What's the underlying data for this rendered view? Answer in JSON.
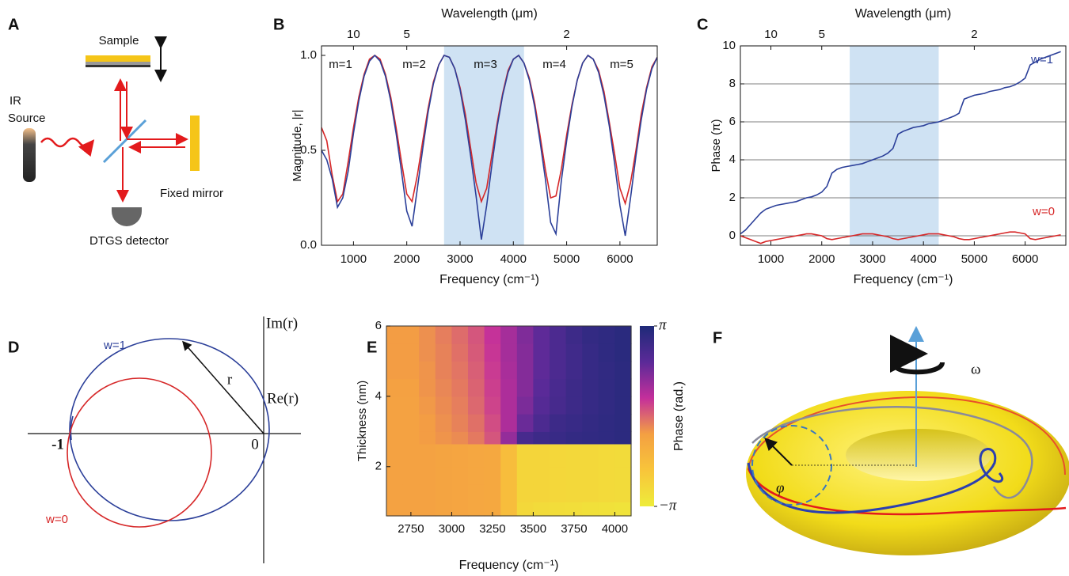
{
  "chart_data": [
    {
      "type": "line",
      "label": "B",
      "xlabel": "Frequency (cm⁻¹)",
      "ylabel": "Magnitude,  |r|",
      "x2label": "Wavelength (μm)",
      "xlim": [
        400,
        6700
      ],
      "xticks": [
        1000,
        2000,
        3000,
        4000,
        5000,
        6000
      ],
      "ylim": [
        0,
        1.05
      ],
      "yticks": [
        {
          "value": 0,
          "label": "0.0"
        },
        {
          "value": 0.5,
          "label": "0.5"
        },
        {
          "value": 1,
          "label": "1.0"
        }
      ],
      "x2ticks": [
        10,
        5,
        2
      ],
      "highlight": [
        2700,
        4200
      ],
      "highlight_color": "#cfe2f3",
      "grid": false,
      "annotations": [
        {
          "text": "m=1"
        },
        {
          "text": "m=2"
        },
        {
          "text": "m=3"
        },
        {
          "text": "m=4"
        },
        {
          "text": "m=5"
        }
      ],
      "x": [
        400,
        500,
        600,
        700,
        800,
        900,
        1000,
        1100,
        1200,
        1300,
        1400,
        1500,
        1600,
        1700,
        1800,
        1900,
        2000,
        2100,
        2200,
        2300,
        2400,
        2500,
        2600,
        2700,
        2800,
        2900,
        3000,
        3100,
        3200,
        3300,
        3400,
        3500,
        3600,
        3700,
        3800,
        3900,
        4000,
        4100,
        4200,
        4300,
        4400,
        4500,
        4600,
        4700,
        4800,
        4900,
        5000,
        5100,
        5200,
        5300,
        5400,
        5500,
        5600,
        5700,
        5800,
        5900,
        6000,
        6100,
        6200,
        6300,
        6400,
        6500,
        6600,
        6700
      ],
      "series": [
        {
          "color": "#d62728",
          "values": [
            0.62,
            0.55,
            0.37,
            0.23,
            0.27,
            0.44,
            0.62,
            0.78,
            0.9,
            0.98,
            1.0,
            0.98,
            0.9,
            0.78,
            0.62,
            0.44,
            0.27,
            0.23,
            0.37,
            0.55,
            0.72,
            0.86,
            0.95,
            1.0,
            0.99,
            0.93,
            0.83,
            0.69,
            0.51,
            0.33,
            0.23,
            0.3,
            0.48,
            0.65,
            0.8,
            0.92,
            0.98,
            1.0,
            0.96,
            0.88,
            0.75,
            0.58,
            0.4,
            0.25,
            0.26,
            0.4,
            0.58,
            0.74,
            0.87,
            0.96,
            1.0,
            0.98,
            0.92,
            0.81,
            0.65,
            0.48,
            0.3,
            0.22,
            0.33,
            0.5,
            0.69,
            0.83,
            0.94,
            0.99
          ]
        },
        {
          "color": "#2b3f99",
          "values": [
            0.5,
            0.45,
            0.35,
            0.2,
            0.25,
            0.39,
            0.59,
            0.76,
            0.89,
            0.97,
            1.0,
            0.97,
            0.89,
            0.76,
            0.59,
            0.39,
            0.18,
            0.1,
            0.3,
            0.51,
            0.7,
            0.85,
            0.95,
            1.0,
            0.99,
            0.93,
            0.82,
            0.66,
            0.47,
            0.26,
            0.03,
            0.21,
            0.43,
            0.63,
            0.79,
            0.91,
            0.98,
            1.0,
            0.96,
            0.87,
            0.73,
            0.55,
            0.35,
            0.12,
            0.06,
            0.34,
            0.55,
            0.73,
            0.87,
            0.96,
            1.0,
            0.98,
            0.91,
            0.79,
            0.63,
            0.43,
            0.21,
            0.05,
            0.25,
            0.47,
            0.66,
            0.82,
            0.93,
            0.99
          ]
        }
      ]
    },
    {
      "type": "line",
      "label": "C",
      "xlabel": "Frequency (cm⁻¹)",
      "ylabel": "Phase (π)",
      "x2label": "Wavelength (μm)",
      "xlim": [
        400,
        6800
      ],
      "xticks": [
        1000,
        2000,
        3000,
        4000,
        5000,
        6000
      ],
      "ylim": [
        -0.5,
        10
      ],
      "yticks": [
        0,
        2,
        4,
        6,
        8,
        10
      ],
      "x2ticks": [
        10,
        5,
        2
      ],
      "highlight": [
        2550,
        4300
      ],
      "highlight_color": "#cfe2f3",
      "grid": true,
      "annotations": [
        {
          "text": "w=1",
          "color": "#2b3f99"
        },
        {
          "text": "w=0",
          "color": "#d62728"
        }
      ],
      "x": [
        400,
        500,
        600,
        700,
        800,
        900,
        1000,
        1100,
        1200,
        1300,
        1400,
        1500,
        1600,
        1700,
        1800,
        1900,
        2000,
        2100,
        2200,
        2300,
        2400,
        2500,
        2600,
        2700,
        2800,
        2900,
        3000,
        3100,
        3200,
        3300,
        3400,
        3500,
        3600,
        3700,
        3800,
        3900,
        4000,
        4100,
        4200,
        4300,
        4400,
        4500,
        4600,
        4700,
        4800,
        4900,
        5000,
        5100,
        5200,
        5300,
        5400,
        5500,
        5600,
        5700,
        5800,
        5900,
        6000,
        6100,
        6200,
        6300,
        6400,
        6500,
        6600,
        6700
      ],
      "series": [
        {
          "color": "#2b3f99",
          "values": [
            0.1,
            0.3,
            0.6,
            0.9,
            1.2,
            1.4,
            1.5,
            1.6,
            1.65,
            1.7,
            1.75,
            1.8,
            1.9,
            2.0,
            2.05,
            2.15,
            2.3,
            2.6,
            3.3,
            3.5,
            3.6,
            3.65,
            3.7,
            3.75,
            3.8,
            3.9,
            4.0,
            4.1,
            4.2,
            4.35,
            4.6,
            5.35,
            5.5,
            5.6,
            5.7,
            5.75,
            5.8,
            5.9,
            5.95,
            6.0,
            6.1,
            6.2,
            6.3,
            6.45,
            7.2,
            7.3,
            7.4,
            7.45,
            7.5,
            7.6,
            7.65,
            7.7,
            7.8,
            7.85,
            7.95,
            8.1,
            8.3,
            9.0,
            9.15,
            9.3,
            9.4,
            9.5,
            9.6,
            9.7
          ]
        },
        {
          "color": "#d62728",
          "values": [
            0,
            -0.1,
            -0.2,
            -0.3,
            -0.4,
            -0.3,
            -0.25,
            -0.2,
            -0.15,
            -0.1,
            -0.05,
            0,
            0.05,
            0.1,
            0.1,
            0.05,
            0,
            -0.15,
            -0.2,
            -0.15,
            -0.1,
            -0.05,
            0,
            0.05,
            0.1,
            0.1,
            0.1,
            0.05,
            0,
            -0.05,
            -0.15,
            -0.2,
            -0.15,
            -0.1,
            -0.05,
            0,
            0.05,
            0.1,
            0.1,
            0.1,
            0.05,
            0,
            -0.05,
            -0.15,
            -0.2,
            -0.2,
            -0.15,
            -0.1,
            -0.05,
            0,
            0.05,
            0.1,
            0.15,
            0.2,
            0.2,
            0.15,
            0.1,
            -0.15,
            -0.2,
            -0.15,
            -0.1,
            -0.05,
            0,
            0.05
          ]
        }
      ]
    },
    {
      "type": "heatmap",
      "label": "E",
      "xlabel": "Frequency (cm⁻¹)",
      "ylabel": "Thickness (nm)",
      "colorbar_label": "Phase (rad.)",
      "xlim": [
        2600,
        4100
      ],
      "xticks": [
        2750,
        3000,
        3250,
        3500,
        3750,
        4000
      ],
      "ylim": [
        0.6,
        6
      ],
      "yticks": [
        2,
        4,
        6
      ],
      "zlim": [
        -3.14159,
        3.14159
      ],
      "zticks": [
        {
          "value": 3.14159,
          "label": "π"
        },
        {
          "value": -3.14159,
          "label": "−π"
        }
      ],
      "colormap": [
        "#eeec3a",
        "#f8c53a",
        "#f4a042",
        "#c42f9b",
        "#5b2a98",
        "#1e2a78"
      ],
      "xbins": [
        2600,
        2700,
        2800,
        2900,
        3000,
        3100,
        3200,
        3300,
        3400,
        3500,
        3600,
        3700,
        3800,
        3900,
        4000,
        4100
      ],
      "ybins": [
        0.6,
        1,
        1.5,
        2,
        2.65,
        3,
        3.5,
        4,
        4.5,
        5,
        5.5,
        6
      ],
      "z": [
        [
          -0.7,
          -0.7,
          -0.7,
          -0.75,
          -0.8,
          -0.85,
          -0.9,
          -1.6,
          -2.5,
          -2.6,
          -2.65,
          -2.7,
          -2.75,
          -2.8,
          -2.85
        ],
        [
          -0.7,
          -0.7,
          -0.7,
          -0.75,
          -0.8,
          -0.85,
          -0.9,
          -1.6,
          -2.4,
          -2.4,
          -2.45,
          -2.5,
          -2.5,
          -2.55,
          -2.6
        ],
        [
          -0.7,
          -0.7,
          -0.7,
          -0.75,
          -0.8,
          -0.85,
          -0.9,
          -1.6,
          -2.4,
          -2.4,
          -2.45,
          -2.5,
          -2.5,
          -2.55,
          -2.6
        ],
        [
          -0.7,
          -0.7,
          -0.7,
          -0.75,
          -0.8,
          -0.85,
          -0.9,
          -1.6,
          -2.4,
          -2.4,
          -2.45,
          -2.5,
          -2.5,
          -2.55,
          -2.6
        ],
        [
          -0.7,
          -0.7,
          -0.6,
          -0.5,
          -0.4,
          -0.2,
          0.2,
          1.2,
          2.3,
          2.5,
          2.6,
          2.7,
          2.75,
          2.8,
          2.85
        ],
        [
          -0.7,
          -0.7,
          -0.6,
          -0.45,
          -0.3,
          -0.1,
          0.3,
          0.9,
          1.7,
          2.2,
          2.5,
          2.6,
          2.7,
          2.8,
          2.85
        ],
        [
          -0.7,
          -0.7,
          -0.55,
          -0.4,
          -0.25,
          0,
          0.4,
          0.9,
          1.5,
          2.0,
          2.3,
          2.5,
          2.65,
          2.75,
          2.85
        ],
        [
          -0.65,
          -0.65,
          -0.5,
          -0.35,
          -0.2,
          0.05,
          0.45,
          0.9,
          1.4,
          1.9,
          2.25,
          2.5,
          2.65,
          2.75,
          2.85
        ],
        [
          -0.6,
          -0.6,
          -0.5,
          -0.3,
          -0.15,
          0.1,
          0.5,
          0.95,
          1.4,
          1.85,
          2.2,
          2.45,
          2.65,
          2.75,
          2.85
        ],
        [
          -0.6,
          -0.6,
          -0.45,
          -0.3,
          -0.1,
          0.15,
          0.55,
          1.0,
          1.4,
          1.85,
          2.2,
          2.45,
          2.65,
          2.8,
          2.9
        ],
        [
          -0.6,
          -0.6,
          -0.45,
          -0.25,
          -0.05,
          0.2,
          0.6,
          1.0,
          1.45,
          1.85,
          2.2,
          2.5,
          2.7,
          2.8,
          2.9
        ]
      ]
    }
  ],
  "panel_a": {
    "label": "A",
    "sample": "Sample",
    "source": [
      "IR",
      "Source"
    ],
    "mirror": "Fixed mirror",
    "detector": "DTGS detector"
  },
  "panel_d": {
    "label": "D",
    "curve_1": "w=1",
    "curve_0": "w=0",
    "imag_axis": "Im(r)",
    "real_axis": "Re(r)",
    "radius": "r",
    "minus_one": "-1",
    "origin": "0"
  },
  "panel_f": {
    "label": "F",
    "rotation": "ω",
    "angle": "φ"
  }
}
